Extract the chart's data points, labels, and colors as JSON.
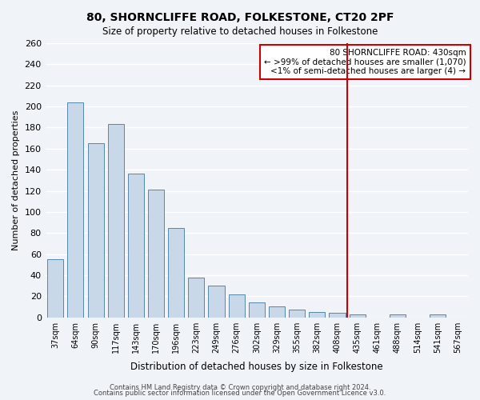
{
  "title": "80, SHORNCLIFFE ROAD, FOLKESTONE, CT20 2PF",
  "subtitle": "Size of property relative to detached houses in Folkestone",
  "xlabel": "Distribution of detached houses by size in Folkestone",
  "ylabel": "Number of detached properties",
  "bar_labels": [
    "37sqm",
    "64sqm",
    "90sqm",
    "117sqm",
    "143sqm",
    "170sqm",
    "196sqm",
    "223sqm",
    "249sqm",
    "276sqm",
    "302sqm",
    "329sqm",
    "355sqm",
    "382sqm",
    "408sqm",
    "435sqm",
    "461sqm",
    "488sqm",
    "514sqm",
    "541sqm",
    "567sqm"
  ],
  "bar_values": [
    55,
    204,
    165,
    183,
    136,
    121,
    85,
    38,
    30,
    22,
    14,
    10,
    7,
    5,
    4,
    3,
    0,
    3,
    0,
    3,
    0
  ],
  "bar_color": "#c8d8e8",
  "bar_edge_color": "#5588aa",
  "background_color": "#f0f4f8",
  "grid_color": "#ffffff",
  "vline_color": "#cc0000",
  "annotation_title": "80 SHORNCLIFFE ROAD: 430sqm",
  "annotation_line1": "← >99% of detached houses are smaller (1,070)",
  "annotation_line2": "<1% of semi-detached houses are larger (4) →",
  "annotation_box_color": "#cc0000",
  "ylim": [
    0,
    260
  ],
  "yticks": [
    0,
    20,
    40,
    60,
    80,
    100,
    120,
    140,
    160,
    180,
    200,
    220,
    240,
    260
  ],
  "footer_line1": "Contains HM Land Registry data © Crown copyright and database right 2024.",
  "footer_line2": "Contains public sector information licensed under the Open Government Licence v3.0."
}
